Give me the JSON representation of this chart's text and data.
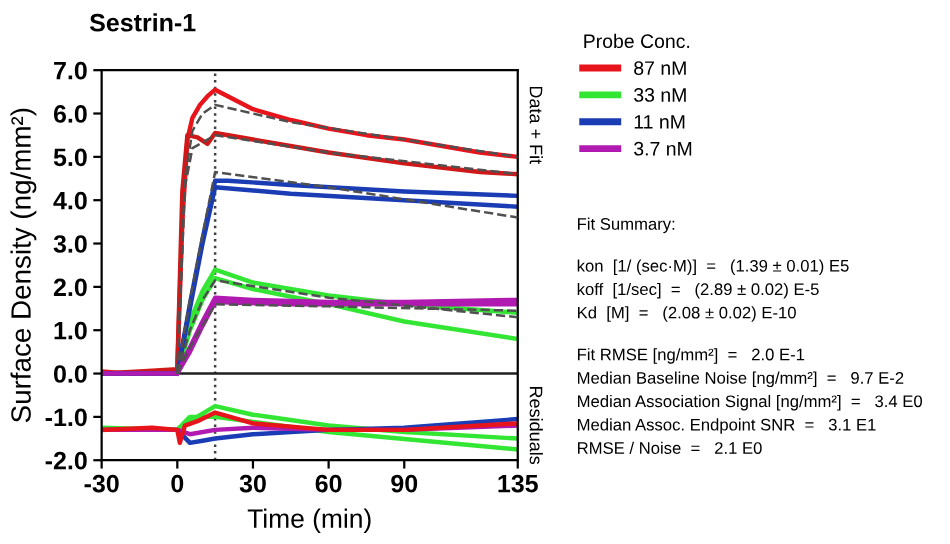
{
  "chart_data": {
    "type": "line",
    "title": "Sestrin-1",
    "xlabel": "Time (min)",
    "ylabel": "Surface Density (ng/mm²)",
    "legend_title": "Probe Conc.",
    "legend": "right",
    "xlim": [
      -30,
      135
    ],
    "xticks": [
      -30,
      0,
      30,
      60,
      90,
      135
    ],
    "ylim": [
      -2,
      7
    ],
    "yticks": [
      {
        "value": 7,
        "label": "7.0"
      },
      {
        "value": 6,
        "label": "6.0"
      },
      {
        "value": 5,
        "label": "5.0"
      },
      {
        "value": 4,
        "label": "4.0"
      },
      {
        "value": 3,
        "label": "3.0"
      },
      {
        "value": 2,
        "label": "2.0"
      },
      {
        "value": 1,
        "label": "1.0"
      },
      {
        "value": 0,
        "label": "0.0"
      },
      {
        "value": -1,
        "label": "-1.0"
      },
      {
        "value": -2,
        "label": "-2.0"
      }
    ],
    "grid": false,
    "ref_lines": [
      {
        "axis": "x",
        "value": 15,
        "label": null,
        "color": "#404040",
        "line_style": "dotted"
      },
      {
        "axis": "y",
        "value": 0,
        "label": null,
        "color": "#202020",
        "line_style": "solid"
      }
    ],
    "annotations": [
      "Data + Fit",
      "Residuals",
      "Fit Summary:",
      "kon  [1/ (sec·M)]  =   (1.39 ± 0.01) E5",
      "koff  [1/sec]  =   (2.89 ± 0.02) E-5",
      "Kd  [M]  =   (2.08 ± 0.02) E-10",
      "Fit RMSE [ng/mm²]  =   2.0 E-1",
      "Median Baseline Noise [ng/mm²]  =   9.7 E-2",
      "Median Association Signal [ng/mm²]  =   3.4 E0",
      "Median Assoc. Endpoint SNR  =   3.1 E1",
      "RMSE / Noise  =   2.1 E0"
    ],
    "series": [
      {
        "name": "87 nM",
        "color": "#e8141c",
        "x": [
          -30,
          -20,
          -10,
          -2,
          0,
          2,
          4,
          6,
          9,
          12,
          15,
          20,
          30,
          45,
          60,
          75,
          90,
          105,
          120,
          135
        ],
        "values": [
          0.05,
          0.0,
          0.05,
          0.0,
          0.1,
          3.5,
          5.4,
          5.9,
          6.2,
          6.4,
          6.55,
          6.4,
          6.1,
          5.85,
          5.65,
          5.5,
          5.4,
          5.25,
          5.1,
          5.0
        ]
      },
      {
        "color": "#d01818",
        "x": [
          -30,
          -15,
          0,
          2,
          4,
          8,
          12,
          15,
          30,
          60,
          90,
          120,
          135
        ],
        "values": [
          0.0,
          0.05,
          0.1,
          4.2,
          5.5,
          5.45,
          5.3,
          5.55,
          5.4,
          5.1,
          4.85,
          4.65,
          4.6
        ]
      },
      {
        "name": "33 nM",
        "color": "#33e633",
        "x": [
          -30,
          0,
          5,
          10,
          15,
          30,
          60,
          90,
          135
        ],
        "values": [
          0.0,
          0.0,
          1.2,
          1.9,
          2.4,
          2.1,
          1.8,
          1.6,
          1.4
        ]
      },
      {
        "color": "#33e633",
        "x": [
          -30,
          0,
          5,
          10,
          15,
          30,
          60,
          90,
          135
        ],
        "values": [
          0.0,
          0.0,
          1.0,
          1.7,
          2.2,
          1.95,
          1.6,
          1.2,
          0.8
        ]
      },
      {
        "name": "11 nM",
        "color": "#1a3cb4",
        "x": [
          -30,
          0,
          5,
          10,
          15,
          20,
          45,
          90,
          135
        ],
        "values": [
          0.0,
          0.0,
          1.6,
          3.1,
          4.45,
          4.45,
          4.35,
          4.2,
          4.1
        ]
      },
      {
        "color": "#1a3cb4",
        "x": [
          -30,
          0,
          5,
          10,
          15,
          45,
          90,
          135
        ],
        "values": [
          0.0,
          0.0,
          1.5,
          3.0,
          4.3,
          4.15,
          4.0,
          3.85
        ]
      },
      {
        "name": "3.7 nM",
        "color": "#b01ab0",
        "x": [
          -30,
          0,
          5,
          10,
          15,
          30,
          60,
          90,
          135
        ],
        "values": [
          0.0,
          0.0,
          0.6,
          1.2,
          1.75,
          1.7,
          1.65,
          1.65,
          1.7
        ]
      },
      {
        "color": "#b01ab0",
        "x": [
          0,
          5,
          10,
          15,
          45,
          90,
          135
        ],
        "values": [
          0.0,
          0.5,
          1.1,
          1.65,
          1.6,
          1.6,
          1.6
        ]
      },
      {
        "color": "#505050",
        "line_style": "dashed",
        "x": [
          0,
          3,
          6,
          10,
          15,
          45,
          90,
          135
        ],
        "values": [
          0.0,
          4.5,
          5.6,
          6.0,
          6.2,
          5.8,
          5.4,
          5.0
        ]
      },
      {
        "color": "#505050",
        "line_style": "dashed",
        "x": [
          0,
          3,
          6,
          15,
          60,
          135
        ],
        "values": [
          0.0,
          4.3,
          5.2,
          5.5,
          5.1,
          4.6
        ]
      },
      {
        "color": "#505050",
        "line_style": "dashed",
        "x": [
          0,
          5,
          10,
          15,
          60,
          135
        ],
        "values": [
          0.0,
          1.7,
          3.2,
          4.65,
          4.3,
          3.6
        ]
      },
      {
        "color": "#505050",
        "line_style": "dashed",
        "x": [
          0,
          5,
          10,
          15,
          60,
          135
        ],
        "values": [
          0.0,
          1.0,
          1.7,
          2.15,
          1.75,
          1.3
        ]
      },
      {
        "color": "#505050",
        "line_style": "dashed",
        "x": [
          0,
          5,
          10,
          15,
          60,
          135
        ],
        "values": [
          0.0,
          0.6,
          1.1,
          1.6,
          1.55,
          1.45
        ]
      },
      {
        "color": "#33e633",
        "x": [
          -30,
          0,
          5,
          15,
          30,
          60,
          90,
          135
        ],
        "values": [
          -1.25,
          -1.3,
          -1.1,
          -0.75,
          -0.95,
          -1.2,
          -1.35,
          -1.5
        ]
      },
      {
        "color": "#33e633",
        "x": [
          -30,
          0,
          5,
          15,
          60,
          135
        ],
        "values": [
          -1.3,
          -1.3,
          -1.0,
          -1.0,
          -1.35,
          -1.75
        ]
      },
      {
        "color": "#1a3cb4",
        "x": [
          -30,
          0,
          5,
          10,
          15,
          30,
          60,
          90,
          135
        ],
        "values": [
          -1.3,
          -1.3,
          -1.6,
          -1.55,
          -1.5,
          -1.4,
          -1.3,
          -1.25,
          -1.05
        ]
      },
      {
        "color": "#b01ab0",
        "x": [
          -30,
          0,
          5,
          15,
          30,
          60,
          90,
          135
        ],
        "values": [
          -1.3,
          -1.3,
          -1.4,
          -1.3,
          -1.25,
          -1.3,
          -1.3,
          -1.2
        ]
      },
      {
        "color": "#e8141c",
        "x": [
          -30,
          -10,
          0,
          1,
          3,
          8,
          15,
          30,
          60,
          90,
          135
        ],
        "values": [
          -1.3,
          -1.25,
          -1.3,
          -1.6,
          -1.2,
          -1.1,
          -0.9,
          -1.15,
          -1.3,
          -1.3,
          -1.15
        ]
      }
    ]
  }
}
